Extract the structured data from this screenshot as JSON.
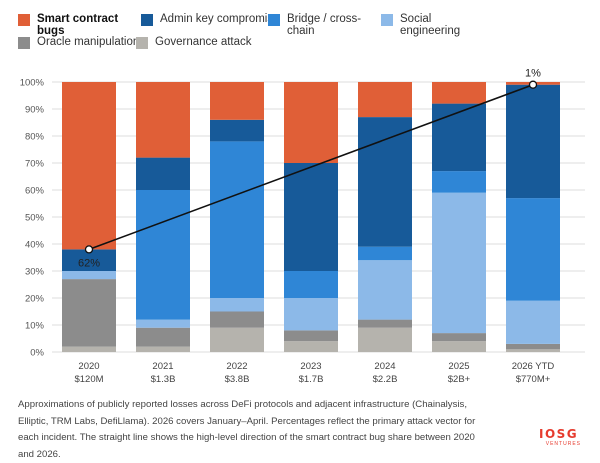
{
  "chart_data": {
    "type": "bar",
    "stacked": true,
    "categories": [
      "2020",
      "2021",
      "2022",
      "2023",
      "2024",
      "2025",
      "2026 YTD"
    ],
    "category_sublabels": [
      "$120M",
      "$1.3B",
      "$3.8B",
      "$1.7B",
      "$2.2B",
      "$2B+",
      "$770M+"
    ],
    "series": [
      {
        "name": "Governance attack",
        "color": "#b5b3ad",
        "values": [
          2,
          2,
          9,
          4,
          9,
          4,
          1
        ]
      },
      {
        "name": "Oracle manipulation",
        "color": "#8c8c8c",
        "values": [
          25,
          7,
          6,
          4,
          3,
          3,
          2
        ]
      },
      {
        "name": "Social engineering",
        "color": "#8cb9e8",
        "values": [
          3,
          3,
          5,
          12,
          22,
          52,
          16
        ]
      },
      {
        "name": "Bridge / cross-chain",
        "color": "#2f86d6",
        "values": [
          0,
          48,
          58,
          10,
          5,
          8,
          38
        ]
      },
      {
        "name": "Admin key compromise",
        "color": "#175a99",
        "values": [
          8,
          12,
          8,
          40,
          48,
          25,
          42
        ]
      },
      {
        "name": "Smart contract bugs",
        "color": "#e05f37",
        "values": [
          62,
          28,
          14,
          30,
          13,
          8,
          1
        ]
      }
    ],
    "legend_order": [
      "Smart contract bugs",
      "Admin key compromise",
      "Bridge / cross-chain",
      "Social engineering",
      "Oracle manipulation",
      "Governance attack"
    ],
    "legend_position": "top",
    "ylim": [
      0,
      100
    ],
    "yticks": [
      "0%",
      "10%",
      "20%",
      "30%",
      "40%",
      "50%",
      "60%",
      "70%",
      "80%",
      "90%",
      "100%"
    ],
    "grid": true,
    "trend_line": {
      "start_category": "2020",
      "start_value": 38,
      "end_category": "2026 YTD",
      "end_value": 99,
      "start_label": "62%",
      "end_label": "1%"
    }
  },
  "legend_labels": {
    "smart_contract_bugs": "Smart contract bugs",
    "admin_key_compromise": "Admin key compromise",
    "bridge_cross_chain": "Bridge / cross-chain",
    "social_engineering": "Social engineering",
    "oracle_manipulation": "Oracle manipulation",
    "governance_attack": "Governance attack"
  },
  "caption": "Approximations of publicly reported losses across DeFi protocols and adjacent infrastructure (Chainalysis, Elliptic, TRM Labs, DefiLlama). 2026 covers January–April. Percentages reflect the primary attack vector for each incident. The straight line shows the high-level direction of the smart contract bug share between 2020 and 2026.",
  "logo": {
    "main": "IOSG",
    "sub": "VENTURES"
  }
}
